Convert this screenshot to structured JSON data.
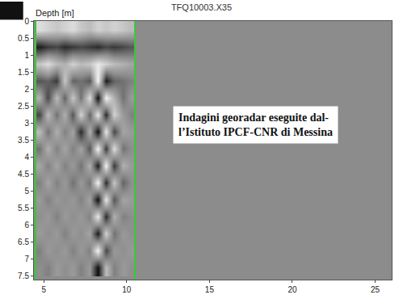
{
  "chart_data": {
    "type": "heatmap",
    "title": "TFQ10003.X35",
    "y_label": "Depth [m]",
    "annotations": [
      {
        "text": [
          "Indagini georadar eseguite dal-",
          "l’Istituto IPCF-CNR di Messina"
        ]
      }
    ],
    "x": [
      4.75,
      5.25,
      5.75,
      6.25,
      6.75,
      7.25,
      7.75,
      8.25,
      8.75,
      9.25,
      9.75,
      10.25
    ],
    "y": [
      0.25,
      0.75,
      1.25,
      1.75,
      2.25,
      2.75,
      3.25,
      3.75,
      4.25,
      4.75,
      5.25,
      5.75,
      6.25,
      6.75,
      7.25
    ],
    "z": [
      [
        0.7,
        0.6,
        0.5,
        0.6,
        0.7,
        0.5,
        0.4,
        0.6,
        0.5,
        0.6,
        0.5,
        0.4
      ],
      [
        -0.8,
        -0.6,
        -0.5,
        -0.7,
        -0.6,
        -0.5,
        -0.6,
        -0.7,
        -0.5,
        -0.6,
        -0.5,
        -0.4
      ],
      [
        0.5,
        0.7,
        0.4,
        0.3,
        0.6,
        0.4,
        0.5,
        0.8,
        0.6,
        0.4,
        0.3,
        0.2
      ],
      [
        -0.4,
        -0.3,
        -0.6,
        0.5,
        -0.3,
        -0.2,
        -0.4,
        0.9,
        -0.8,
        -0.3,
        -0.2,
        -0.1
      ],
      [
        0.3,
        -0.5,
        0.4,
        -0.3,
        0.5,
        -0.2,
        0.7,
        -0.9,
        0.9,
        0.3,
        -0.2,
        0.1
      ],
      [
        -0.5,
        0.4,
        -0.2,
        0.3,
        -0.4,
        0.6,
        -0.3,
        0.8,
        -0.7,
        0.6,
        0.1,
        -0.1
      ],
      [
        0.4,
        -0.2,
        0.3,
        -0.1,
        0.2,
        -0.7,
        0.3,
        -0.9,
        0.8,
        -0.5,
        0.2,
        0.1
      ],
      [
        -0.2,
        0.3,
        -0.1,
        0.2,
        -0.1,
        0.2,
        -0.4,
        0.9,
        -0.6,
        0.7,
        -0.2,
        0.0
      ],
      [
        0.2,
        -0.1,
        0.2,
        -0.1,
        0.1,
        -0.2,
        0.3,
        -0.8,
        0.9,
        -0.6,
        0.3,
        0.1
      ],
      [
        -0.1,
        0.2,
        -0.1,
        0.1,
        -0.2,
        0.1,
        -0.2,
        0.9,
        -0.7,
        0.5,
        -0.3,
        0.0
      ],
      [
        0.1,
        -0.1,
        0.1,
        0.0,
        0.1,
        -0.1,
        0.2,
        -0.9,
        0.8,
        -0.4,
        0.2,
        0.1
      ],
      [
        0.0,
        0.1,
        -0.1,
        0.1,
        0.0,
        0.1,
        -0.1,
        0.8,
        -0.7,
        0.3,
        -0.1,
        0.0
      ],
      [
        0.1,
        0.0,
        0.1,
        -0.1,
        0.1,
        0.0,
        0.2,
        -0.8,
        0.6,
        -0.2,
        0.1,
        0.0
      ],
      [
        -0.1,
        0.1,
        0.0,
        0.1,
        -0.1,
        0.1,
        -0.1,
        0.9,
        -0.5,
        0.1,
        0.0,
        0.1
      ],
      [
        0.0,
        -0.1,
        0.1,
        0.0,
        0.1,
        -0.1,
        0.1,
        -0.9,
        0.4,
        -0.1,
        0.1,
        0.0
      ]
    ],
    "zlim": [
      -1,
      1
    ],
    "xlim": [
      4.4,
      26
    ],
    "xticks": [
      5,
      10,
      15,
      20,
      25
    ],
    "ylim": [
      0,
      7.6
    ],
    "yticks": [
      0,
      0.5,
      1,
      1.5,
      2,
      2.5,
      3,
      3.5,
      4,
      4.5,
      5,
      5.5,
      6,
      6.5,
      7,
      7.5
    ],
    "grid": false
  }
}
